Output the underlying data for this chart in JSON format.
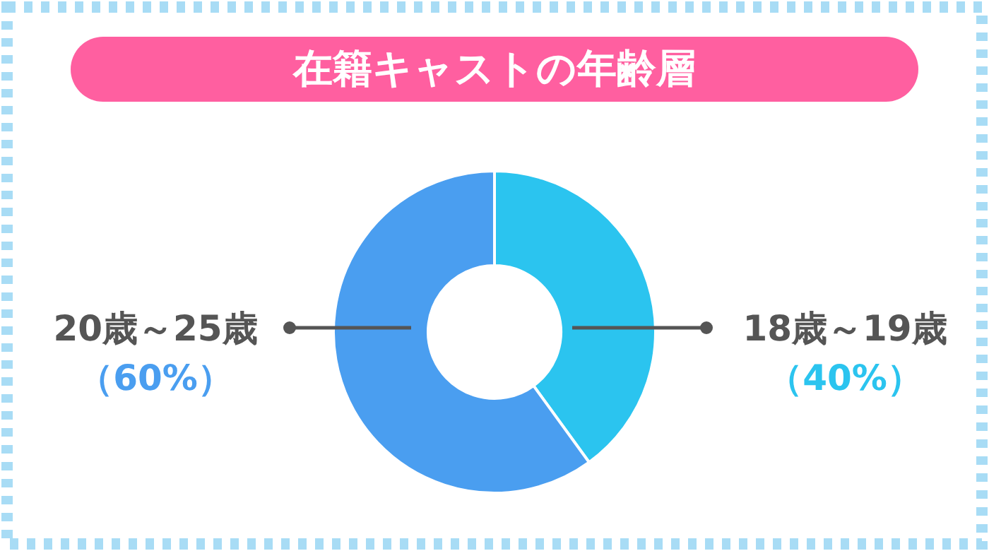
{
  "chart_data": {
    "type": "donut",
    "title": "在籍キャストの年齢層",
    "categories": [
      "18歳～19歳",
      "20歳～25歳"
    ],
    "values": [
      40,
      60
    ],
    "colors": [
      "#2bc4ef",
      "#4a9ef0"
    ],
    "value_labels": [
      "（40%）",
      "（60%）"
    ]
  }
}
